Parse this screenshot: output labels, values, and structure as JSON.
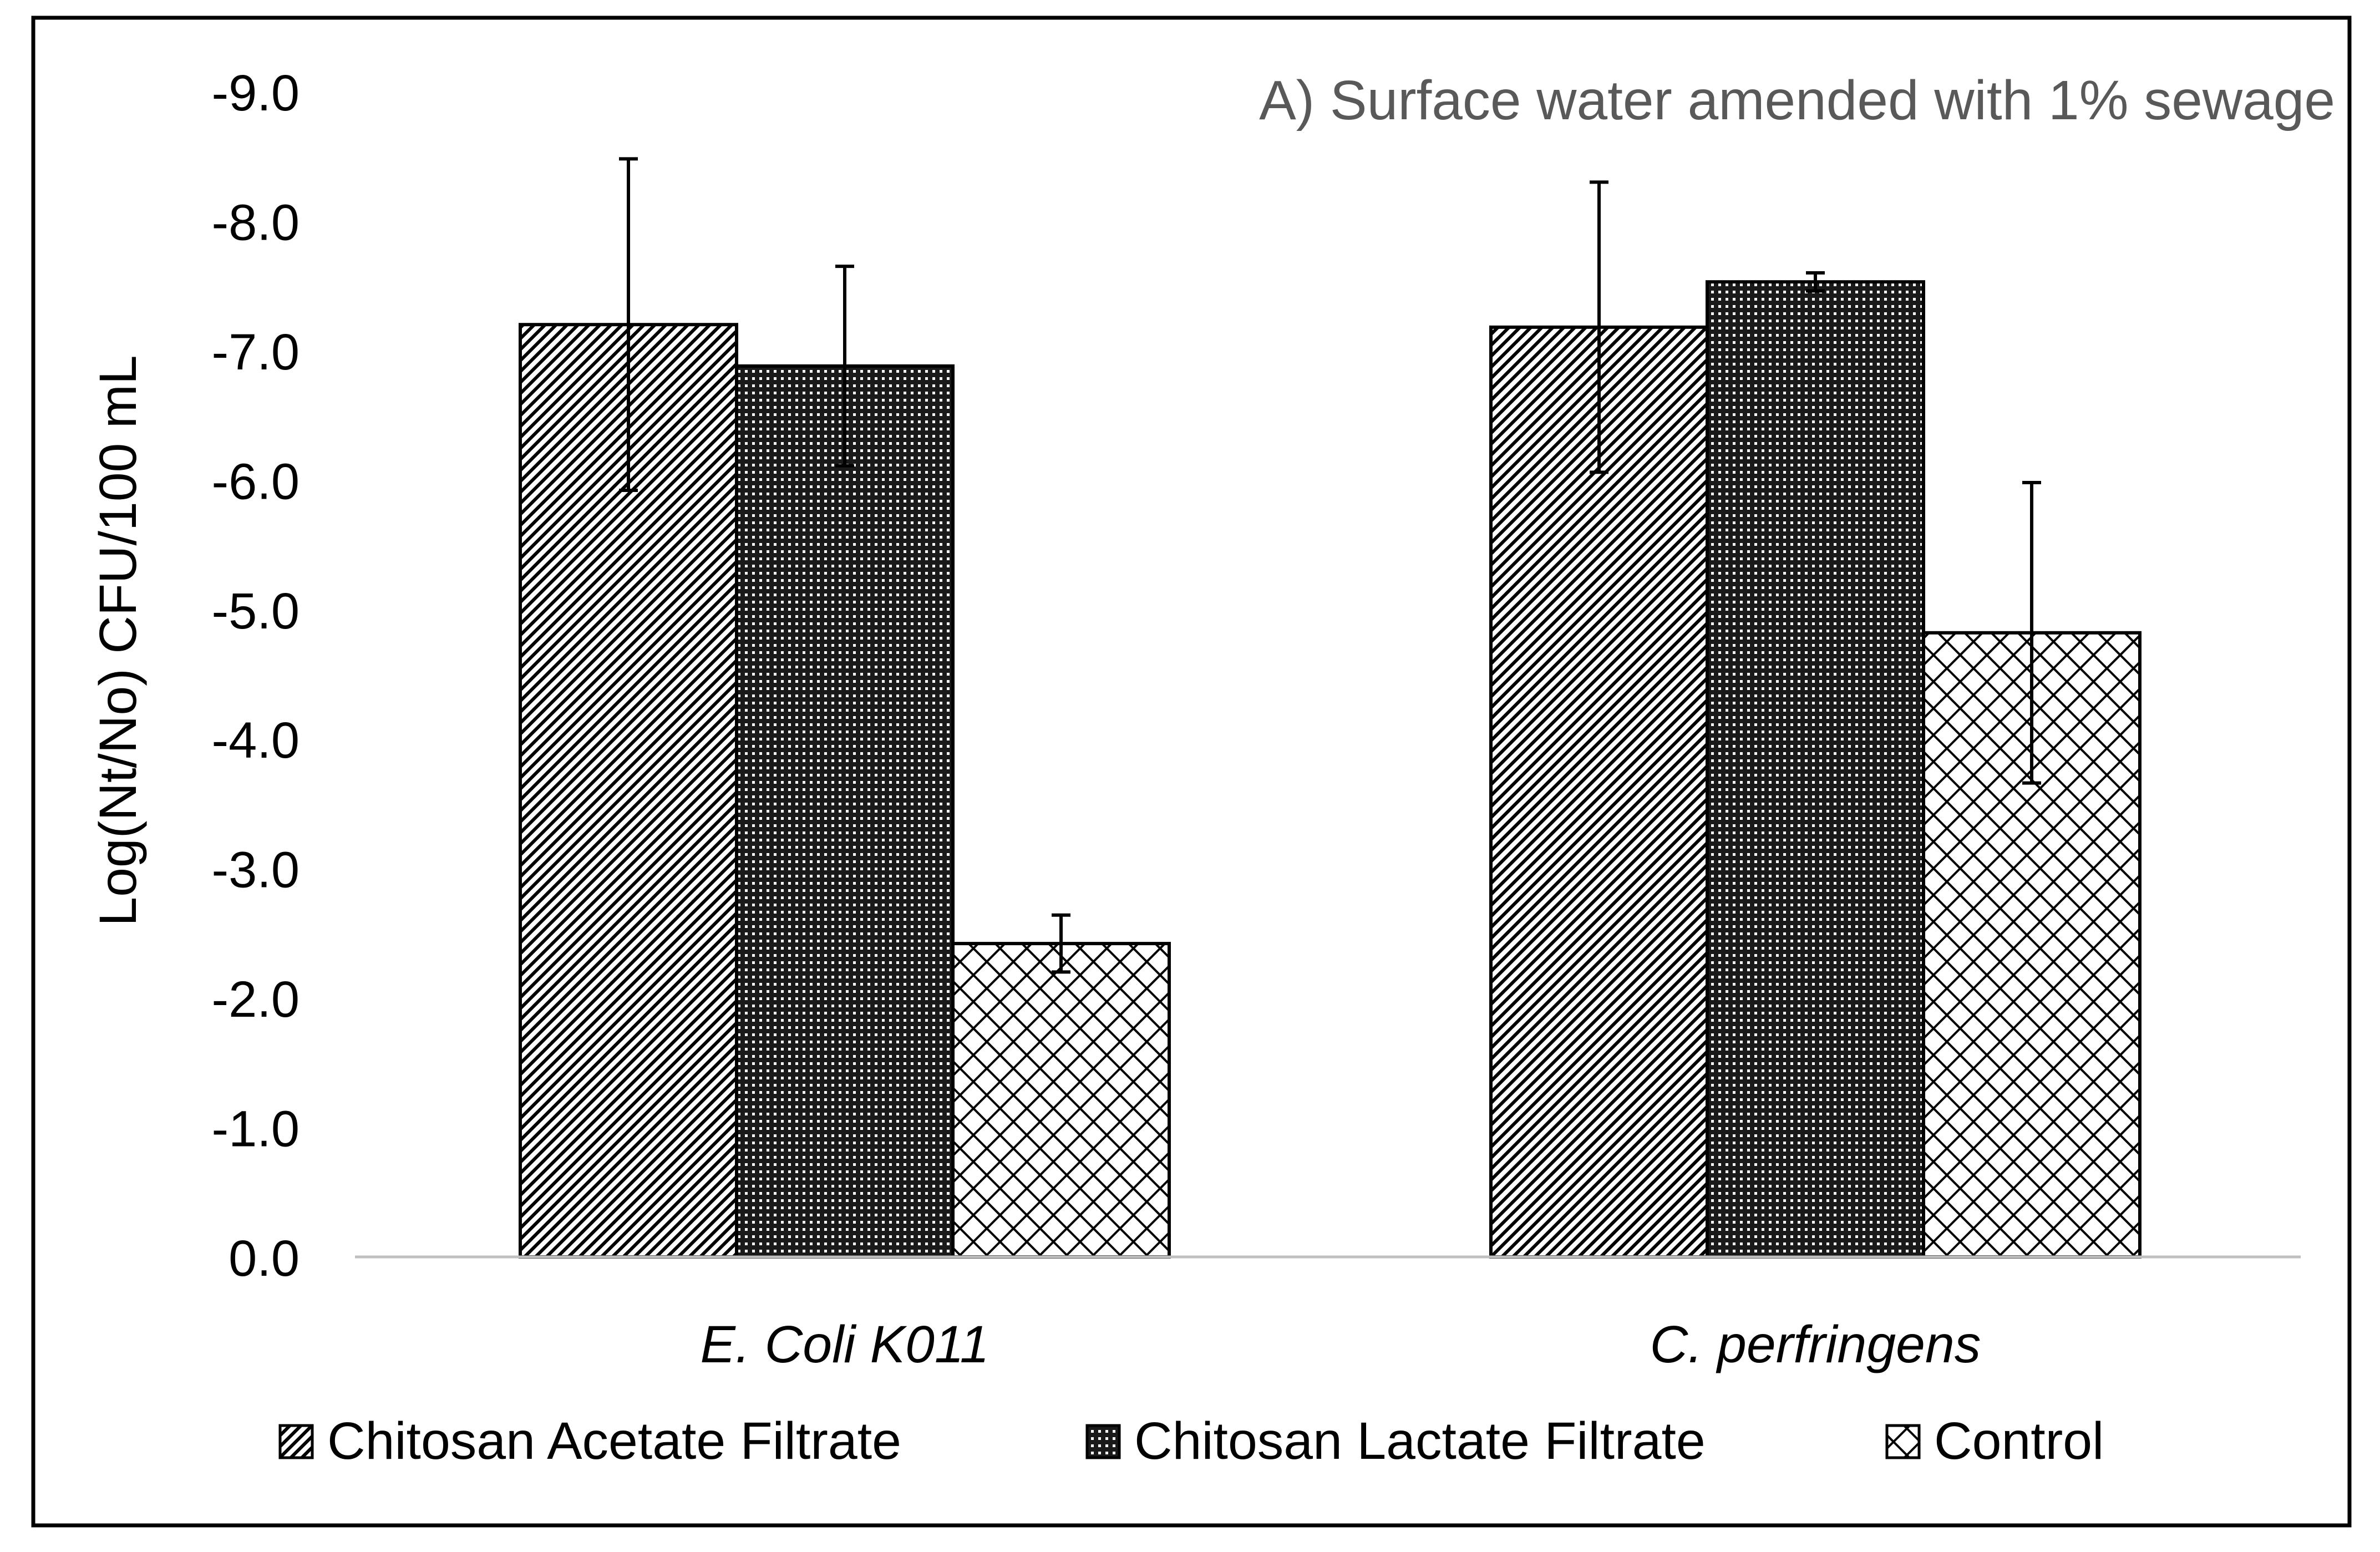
{
  "chart_data": {
    "type": "bar",
    "title": "A) Surface water amended with 1% sewage",
    "ylabel": "Log(Nt/No) CFU/100 mL",
    "xlabel": "",
    "ylim": [
      0,
      -9
    ],
    "yticks": [
      "-9.0",
      "-8.0",
      "-7.0",
      "-6.0",
      "-5.0",
      "-4.0",
      "-3.0",
      "-2.0",
      "-1.0",
      "0.0"
    ],
    "categories": [
      "E. Coli K011",
      "C. perfringens"
    ],
    "series": [
      {
        "name": "Chitosan Acetate Filtrate",
        "pattern": "diagonal-hatch",
        "values": [
          -7.2,
          -7.18
        ],
        "error": [
          1.28,
          1.12
        ]
      },
      {
        "name": "Chitosan Lactate Filtrate",
        "pattern": "dense-dots",
        "values": [
          -6.88,
          -7.53
        ],
        "error": [
          0.77,
          0.07
        ]
      },
      {
        "name": "Control",
        "pattern": "crosshatch",
        "values": [
          -2.42,
          -4.82
        ],
        "error": [
          0.22,
          1.16
        ]
      }
    ],
    "legend_position": "bottom",
    "grid": false
  },
  "colors": {
    "axis": "#bfbfbf",
    "text": "#000000",
    "title": "#595959",
    "bar_outline": "#000000",
    "frame": "#000000"
  }
}
